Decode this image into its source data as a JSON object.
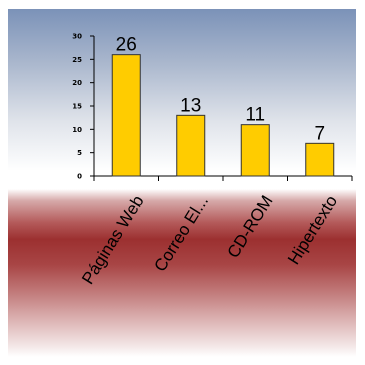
{
  "chart_data": {
    "type": "bar",
    "categories": [
      "Páginas Web",
      "Correo El...",
      "CD-ROM",
      "Hipertexto"
    ],
    "values": [
      26,
      13,
      11,
      7
    ],
    "data_labels": [
      "26",
      "13",
      "11",
      "7"
    ],
    "yticks": [
      0,
      5,
      10,
      15,
      20,
      25,
      30
    ],
    "ytick_labels": [
      "0",
      "5",
      "10",
      "15",
      "20",
      "25",
      "30"
    ],
    "ylim": [
      0,
      30
    ],
    "title": "",
    "xlabel": "",
    "ylabel": "",
    "grid": false,
    "legend": "none",
    "bar_color": "#ffcc00",
    "bar_edge_color": "#333333"
  },
  "colors": {
    "plot_background_top": "#7b92b8",
    "label_band": "#9c3030"
  }
}
